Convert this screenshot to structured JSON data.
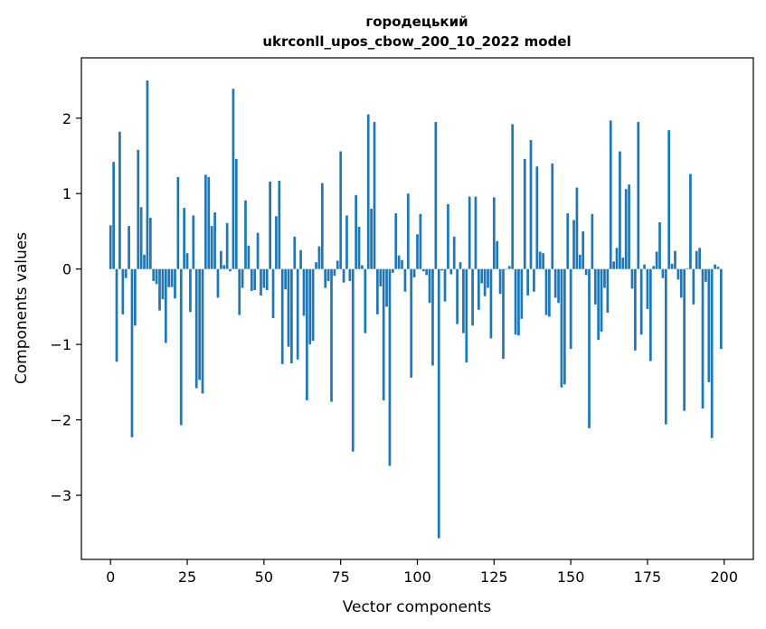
{
  "chart_data": {
    "type": "bar",
    "title": "городецький",
    "subtitle": "ukrconll_upos_cbow_200_10_2022 model",
    "xlabel": "Vector components",
    "ylabel": "Components values",
    "xlim": [
      -9.5,
      209.5
    ],
    "ylim": [
      -3.85,
      2.8
    ],
    "xticks": [
      0,
      25,
      50,
      75,
      100,
      125,
      150,
      175,
      200
    ],
    "yticks": [
      -3,
      -2,
      -1,
      0,
      1,
      2
    ],
    "ytick_labels": [
      "−3",
      "−2",
      "−1",
      "0",
      "1",
      "2"
    ],
    "bar_color": "#1f77b4",
    "grid": false,
    "values": [
      0.58,
      1.42,
      -1.23,
      1.82,
      -0.6,
      -0.12,
      0.57,
      -2.23,
      -0.75,
      1.58,
      0.82,
      0.19,
      2.5,
      0.68,
      -0.16,
      -0.2,
      -0.55,
      -0.4,
      -0.98,
      -0.24,
      -0.24,
      -0.39,
      1.22,
      -2.07,
      0.81,
      0.21,
      -0.57,
      0.71,
      -1.58,
      -1.47,
      -1.65,
      1.25,
      1.22,
      0.57,
      0.75,
      -0.38,
      0.24,
      0.05,
      0.61,
      -0.03,
      2.39,
      1.46,
      -0.61,
      -0.25,
      0.91,
      0.31,
      -0.29,
      -0.28,
      0.48,
      -0.35,
      -0.25,
      -0.28,
      1.16,
      -0.65,
      0.7,
      1.17,
      -1.26,
      -0.27,
      -1.03,
      -1.25,
      0.43,
      -1.2,
      0.25,
      -0.62,
      -1.74,
      -1.0,
      -0.95,
      0.09,
      0.3,
      1.14,
      -0.25,
      -0.16,
      -1.76,
      -0.09,
      0.11,
      1.56,
      -0.18,
      0.71,
      -0.16,
      -2.42,
      0.98,
      0.56,
      0.05,
      -0.85,
      2.05,
      0.8,
      1.95,
      -0.6,
      -0.23,
      -1.74,
      -0.5,
      -2.61,
      -0.05,
      0.74,
      0.18,
      0.12,
      -0.3,
      1.0,
      -1.44,
      -0.11,
      0.46,
      0.73,
      -0.03,
      -0.08,
      -0.45,
      -1.28,
      1.95,
      -3.57,
      -0.02,
      -0.43,
      0.86,
      -0.07,
      0.43,
      -0.73,
      0.09,
      -0.85,
      -1.24,
      0.96,
      -0.75,
      0.96,
      -0.54,
      -0.19,
      -0.36,
      -0.25,
      -0.92,
      0.95,
      0.37,
      -0.33,
      -1.19,
      0.0,
      0.04,
      1.92,
      -0.87,
      -0.88,
      -0.66,
      1.46,
      -0.35,
      1.71,
      -0.3,
      1.36,
      0.23,
      0.21,
      -0.61,
      -0.63,
      1.4,
      -0.38,
      -0.45,
      -1.57,
      -1.53,
      0.74,
      -1.06,
      0.65,
      1.08,
      0.19,
      0.5,
      -0.08,
      -2.11,
      0.73,
      -0.47,
      -0.94,
      -0.83,
      -0.25,
      -0.58,
      1.97,
      0.1,
      0.28,
      1.56,
      0.15,
      1.06,
      1.12,
      -0.26,
      -1.08,
      1.95,
      -0.87,
      0.06,
      -0.53,
      -1.22,
      0.04,
      0.23,
      0.62,
      -0.12,
      -2.06,
      1.84,
      0.07,
      0.24,
      -0.14,
      -0.38,
      -1.88,
      0.01,
      1.26,
      -0.47,
      0.24,
      0.28,
      -1.85,
      -0.17,
      -1.5,
      -2.24,
      0.06,
      0.03,
      -1.06
    ]
  }
}
